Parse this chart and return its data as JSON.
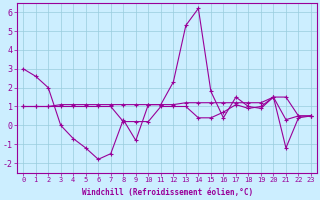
{
  "title": "",
  "xlabel": "Windchill (Refroidissement éolien,°C)",
  "ylabel": "",
  "background_color": "#cceeff",
  "grid_color": "#99ccdd",
  "line_color": "#990099",
  "border_color": "#990099",
  "xlim": [
    -0.5,
    23.5
  ],
  "ylim": [
    -2.5,
    6.5
  ],
  "yticks": [
    -2,
    -1,
    0,
    1,
    2,
    3,
    4,
    5,
    6
  ],
  "xticks": [
    0,
    1,
    2,
    3,
    4,
    5,
    6,
    7,
    8,
    9,
    10,
    11,
    12,
    13,
    14,
    15,
    16,
    17,
    18,
    19,
    20,
    21,
    22,
    23
  ],
  "series": [
    [
      3.0,
      2.6,
      2.0,
      0.0,
      -0.7,
      -1.2,
      -1.8,
      -1.5,
      0.3,
      -0.8,
      1.1,
      1.1,
      2.3,
      5.3,
      6.2,
      1.8,
      0.4,
      1.5,
      1.0,
      0.9,
      1.5,
      -1.2,
      0.4,
      0.5
    ],
    [
      1.0,
      1.0,
      1.0,
      1.1,
      1.1,
      1.1,
      1.1,
      1.1,
      1.1,
      1.1,
      1.1,
      1.1,
      1.1,
      1.2,
      1.2,
      1.2,
      1.2,
      1.2,
      1.2,
      1.2,
      1.5,
      1.5,
      0.5,
      0.5
    ],
    [
      1.0,
      1.0,
      1.0,
      1.0,
      1.0,
      1.0,
      1.0,
      1.0,
      0.2,
      0.2,
      0.2,
      1.0,
      1.0,
      1.0,
      0.4,
      0.4,
      0.7,
      1.1,
      0.9,
      1.0,
      1.5,
      0.3,
      0.5,
      0.5
    ]
  ],
  "tick_fontsize": 5,
  "xlabel_fontsize": 5.5,
  "linewidth": 0.8,
  "marker": "+",
  "markersize": 3
}
